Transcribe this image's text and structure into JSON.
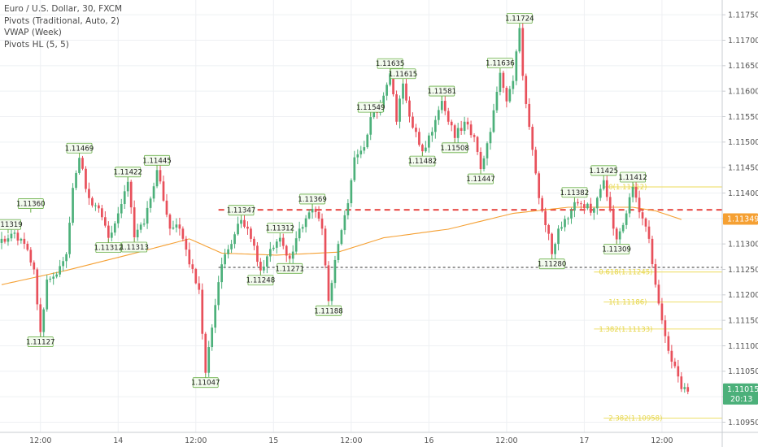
{
  "legend": {
    "title": "Euro / U.S. Dollar, 30, FXCM",
    "items": [
      "Pivots (Traditional, Auto, 2)",
      "VWAP (Week)",
      "Pivots HL (5, 5)"
    ]
  },
  "colors": {
    "up": "#4cb07a",
    "down": "#e8505b",
    "vwap": "#f5a033",
    "fib": "#f0e27a",
    "red_level": "#e53935",
    "black_level": "#333333",
    "price_tag": "#4cb07a",
    "pivot_label_bg": "#f3fbee",
    "pivot_label_border": "#6bb04a"
  },
  "chart_data": {
    "type": "candlestick",
    "symbol": "Euro / U.S. Dollar",
    "timeframe": "30",
    "source": "FXCM",
    "y_ticks": [
      1.1095,
      1.11,
      1.1105,
      1.111,
      1.1115,
      1.112,
      1.1125,
      1.113,
      1.1135,
      1.114,
      1.1145,
      1.115,
      1.1155,
      1.116,
      1.1165,
      1.117,
      1.1175
    ],
    "y_tick_labels": [
      "1.10950",
      "1.11000",
      "1.11050",
      "1.11100",
      "1.11150",
      "1.11200",
      "1.11250",
      "1.11300",
      "1.11350",
      "1.11400",
      "1.11450",
      "1.11500",
      "1.11550",
      "1.11600",
      "1.11650",
      "1.11700",
      "1.11750"
    ],
    "ylim": [
      1.1093,
      1.11779
    ],
    "x_ticks": [
      {
        "label": "12:00",
        "bar": 12
      },
      {
        "label": "14",
        "bar": 36
      },
      {
        "label": "12:00",
        "bar": 60
      },
      {
        "label": "15",
        "bar": 84
      },
      {
        "label": "12:00",
        "bar": 108
      },
      {
        "label": "16",
        "bar": 132
      },
      {
        "label": "12:00",
        "bar": 156
      },
      {
        "label": "17",
        "bar": 180
      },
      {
        "label": "12:00",
        "bar": 204
      }
    ],
    "bar_count": 216,
    "anchors": [
      [
        0,
        1.1131
      ],
      [
        3,
        1.1132
      ],
      [
        6,
        1.1131
      ],
      [
        10,
        1.1125
      ],
      [
        12,
        1.11127
      ],
      [
        14,
        1.1123
      ],
      [
        17,
        1.1124
      ],
      [
        20,
        1.1128
      ],
      [
        22,
        1.1141
      ],
      [
        24,
        1.11469
      ],
      [
        27,
        1.1139
      ],
      [
        30,
        1.1137
      ],
      [
        33,
        1.11312
      ],
      [
        36,
        1.1136
      ],
      [
        39,
        1.11422
      ],
      [
        41,
        1.11313
      ],
      [
        44,
        1.1134
      ],
      [
        48,
        1.11445
      ],
      [
        52,
        1.1133
      ],
      [
        55,
        1.1133
      ],
      [
        58,
        1.1126
      ],
      [
        61,
        1.1121
      ],
      [
        63,
        1.11047
      ],
      [
        66,
        1.1118
      ],
      [
        68,
        1.1126
      ],
      [
        71,
        1.113
      ],
      [
        74,
        1.11347
      ],
      [
        77,
        1.1131
      ],
      [
        80,
        1.11248
      ],
      [
        83,
        1.1129
      ],
      [
        86,
        1.11312
      ],
      [
        89,
        1.11271
      ],
      [
        92,
        1.1133
      ],
      [
        96,
        1.11369
      ],
      [
        99,
        1.1133
      ],
      [
        101,
        1.11188
      ],
      [
        104,
        1.113
      ],
      [
        107,
        1.1138
      ],
      [
        109,
        1.1147
      ],
      [
        112,
        1.1149
      ],
      [
        114,
        1.11549
      ],
      [
        117,
        1.1157
      ],
      [
        120,
        1.11635
      ],
      [
        122,
        1.1154
      ],
      [
        124,
        1.11615
      ],
      [
        126,
        1.1155
      ],
      [
        128,
        1.1152
      ],
      [
        130,
        1.11482
      ],
      [
        133,
        1.1152
      ],
      [
        136,
        1.11581
      ],
      [
        138,
        1.1154
      ],
      [
        140,
        1.11508
      ],
      [
        143,
        1.1154
      ],
      [
        146,
        1.1151
      ],
      [
        148,
        1.11447
      ],
      [
        151,
        1.1152
      ],
      [
        154,
        1.11636
      ],
      [
        156,
        1.1158
      ],
      [
        158,
        1.1162
      ],
      [
        160,
        1.11724
      ],
      [
        161,
        1.1163
      ],
      [
        163,
        1.1153
      ],
      [
        166,
        1.1139
      ],
      [
        169,
        1.1132
      ],
      [
        170,
        1.1128
      ],
      [
        172,
        1.1133
      ],
      [
        175,
        1.1135
      ],
      [
        177,
        1.11382
      ],
      [
        180,
        1.1137
      ],
      [
        183,
        1.1137
      ],
      [
        186,
        1.11425
      ],
      [
        189,
        1.1133
      ],
      [
        190,
        1.11309
      ],
      [
        193,
        1.1136
      ],
      [
        195,
        1.11412
      ],
      [
        198,
        1.1135
      ],
      [
        200,
        1.1131
      ],
      [
        202,
        1.1122
      ],
      [
        204,
        1.1115
      ],
      [
        206,
        1.1109
      ],
      [
        208,
        1.1106
      ],
      [
        210,
        1.11015
      ],
      [
        212,
        1.1101
      ]
    ],
    "vwap": [
      [
        0,
        1.1122
      ],
      [
        20,
        1.11248
      ],
      [
        40,
        1.1128
      ],
      [
        58,
        1.1131
      ],
      [
        68,
        1.11282
      ],
      [
        85,
        1.11278
      ],
      [
        104,
        1.11284
      ],
      [
        118,
        1.11312
      ],
      [
        138,
        1.11329
      ],
      [
        158,
        1.1136
      ],
      [
        175,
        1.11372
      ],
      [
        195,
        1.11372
      ],
      [
        202,
        1.11365
      ],
      [
        210,
        1.11348
      ]
    ],
    "pivot_labels": [
      {
        "text": "1.11319",
        "bar": 2,
        "price": 1.11319,
        "pos": "above"
      },
      {
        "text": "1.11360",
        "bar": 9,
        "price": 1.1136,
        "pos": "above"
      },
      {
        "text": "1.11127",
        "bar": 12,
        "price": 1.11127,
        "pos": "below"
      },
      {
        "text": "1.11469",
        "bar": 24,
        "price": 1.11469,
        "pos": "above"
      },
      {
        "text": "1.11312",
        "bar": 33,
        "price": 1.11312,
        "pos": "below"
      },
      {
        "text": "1.11422",
        "bar": 39,
        "price": 1.11422,
        "pos": "above"
      },
      {
        "text": "1.11313",
        "bar": 41,
        "price": 1.11313,
        "pos": "below"
      },
      {
        "text": "1.11445",
        "bar": 48,
        "price": 1.11445,
        "pos": "above"
      },
      {
        "text": "1.11047",
        "bar": 63,
        "price": 1.11047,
        "pos": "below"
      },
      {
        "text": "1.11347",
        "bar": 74,
        "price": 1.11347,
        "pos": "above"
      },
      {
        "text": "1.11248",
        "bar": 80,
        "price": 1.11248,
        "pos": "below"
      },
      {
        "text": "1.11312",
        "bar": 86,
        "price": 1.11312,
        "pos": "above"
      },
      {
        "text": "1.11271",
        "bar": 89,
        "price": 1.11271,
        "pos": "below"
      },
      {
        "text": "1.11369",
        "bar": 96,
        "price": 1.11369,
        "pos": "above"
      },
      {
        "text": "1.11188",
        "bar": 101,
        "price": 1.11188,
        "pos": "below"
      },
      {
        "text": "1.11549",
        "bar": 114,
        "price": 1.11549,
        "pos": "above"
      },
      {
        "text": "1.11635",
        "bar": 120,
        "price": 1.11635,
        "pos": "above"
      },
      {
        "text": "1.11615",
        "bar": 124,
        "price": 1.11615,
        "pos": "above"
      },
      {
        "text": "1.11482",
        "bar": 130,
        "price": 1.11482,
        "pos": "below"
      },
      {
        "text": "1.11581",
        "bar": 136,
        "price": 1.11581,
        "pos": "above"
      },
      {
        "text": "1.11508",
        "bar": 140,
        "price": 1.11508,
        "pos": "below"
      },
      {
        "text": "1.11447",
        "bar": 148,
        "price": 1.11447,
        "pos": "below"
      },
      {
        "text": "1.11636",
        "bar": 154,
        "price": 1.11636,
        "pos": "above"
      },
      {
        "text": "1.11724",
        "bar": 160,
        "price": 1.11724,
        "pos": "above"
      },
      {
        "text": "1.11280",
        "bar": 170,
        "price": 1.1128,
        "pos": "below"
      },
      {
        "text": "1.11382",
        "bar": 177,
        "price": 1.11382,
        "pos": "above"
      },
      {
        "text": "1.11425",
        "bar": 186,
        "price": 1.11425,
        "pos": "above"
      },
      {
        "text": "1.11309",
        "bar": 190,
        "price": 1.11309,
        "pos": "below"
      },
      {
        "text": "1.11412",
        "bar": 195,
        "price": 1.11412,
        "pos": "above"
      }
    ],
    "levels": [
      {
        "price": 1.11367,
        "color": "red",
        "style": "dashed",
        "from_bar": 67
      },
      {
        "price": 1.11254,
        "color": "black",
        "style": "dashed",
        "from_bar": 67
      }
    ],
    "fib_lines": [
      {
        "price": 1.11412,
        "label": "0(1.11412)",
        "from_bar": 186
      },
      {
        "price": 1.11245,
        "label": "0.618(1.11245)",
        "from_bar": 183
      },
      {
        "price": 1.11186,
        "label": "1(1.11186)",
        "from_bar": 186
      },
      {
        "price": 1.11133,
        "label": "1.382(1.11133)",
        "from_bar": 183
      },
      {
        "price": 1.10958,
        "label": "2.382(1.10958)",
        "from_bar": 186
      }
    ],
    "price_tags": [
      {
        "price": 1.11349,
        "text": "1.11349",
        "bg": "#f5a033"
      },
      {
        "price": 1.11015,
        "text": "1.11015",
        "bg": "#4cb07a",
        "countdown": "20:13"
      }
    ]
  }
}
